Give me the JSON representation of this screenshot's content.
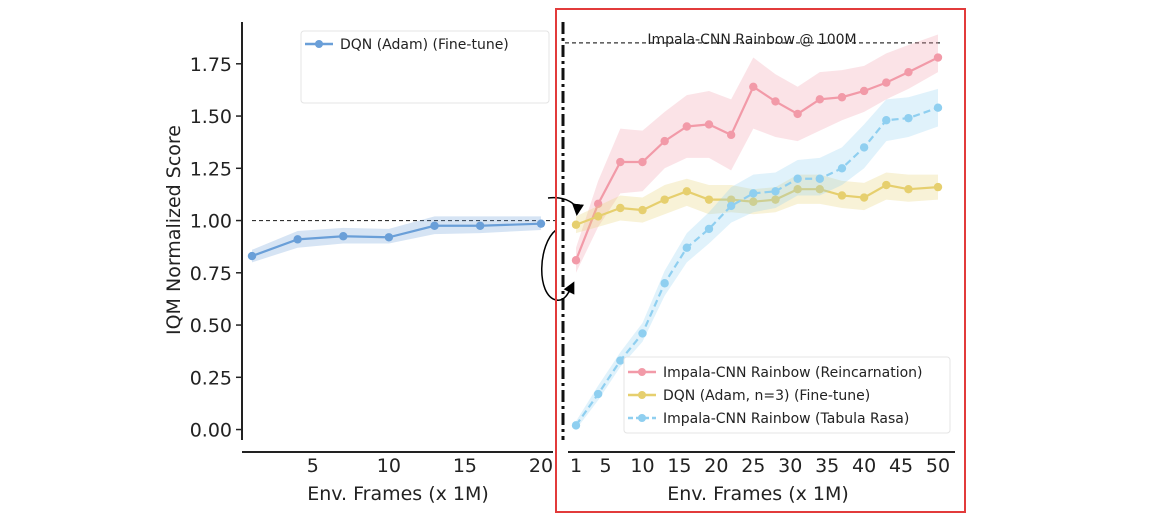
{
  "chart_data": {
    "type": "line",
    "ylabel": "IQM Normalized Score",
    "ylim": [
      -0.05,
      1.95
    ],
    "yticks": [
      "0.00",
      "0.25",
      "0.50",
      "0.75",
      "1.00",
      "1.25",
      "1.50",
      "1.75"
    ],
    "left_panel": {
      "xlabel": "Env. Frames (x 1M)",
      "xticks": [
        "5",
        "10",
        "15",
        "20"
      ],
      "xlim": [
        1,
        20
      ],
      "reference_line_y": 1.0,
      "legend": [
        "DQN (Adam) (Fine-tune)"
      ],
      "series": [
        {
          "name": "DQN (Adam) (Fine-tune)",
          "color": "#6a9fd8",
          "x": [
            1,
            4,
            7,
            10,
            13,
            16,
            20
          ],
          "y": [
            0.83,
            0.91,
            0.925,
            0.92,
            0.975,
            0.975,
            0.985
          ],
          "lo": [
            0.8,
            0.87,
            0.89,
            0.89,
            0.935,
            0.94,
            0.955
          ],
          "hi": [
            0.86,
            0.95,
            0.965,
            0.96,
            1.02,
            1.02,
            1.02
          ]
        }
      ]
    },
    "right_panel": {
      "xlabel": "Env. Frames (x 1M)",
      "xticks": [
        "1",
        "5",
        "10",
        "15",
        "20",
        "25",
        "30",
        "35",
        "40",
        "45",
        "50"
      ],
      "xlim": [
        1,
        50
      ],
      "reference_line_y": 1.85,
      "annotation": "Impala-CNN Rainbow @ 100M",
      "legend": [
        "Impala-CNN Rainbow (Reincarnation)",
        "DQN (Adam, n=3) (Fine-tune)",
        "Impala-CNN Rainbow (Tabula Rasa)"
      ],
      "series": [
        {
          "name": "Impala-CNN Rainbow (Reincarnation)",
          "color": "#f29aa8",
          "style": "solid",
          "x": [
            1,
            4,
            7,
            10,
            13,
            16,
            19,
            22,
            25,
            28,
            31,
            34,
            37,
            40,
            43,
            46,
            50
          ],
          "y": [
            0.81,
            1.08,
            1.28,
            1.28,
            1.38,
            1.45,
            1.46,
            1.41,
            1.64,
            1.57,
            1.51,
            1.58,
            1.59,
            1.62,
            1.66,
            1.71,
            1.78
          ],
          "lo": [
            0.75,
            0.97,
            1.13,
            1.14,
            1.25,
            1.3,
            1.3,
            1.24,
            1.44,
            1.4,
            1.38,
            1.43,
            1.48,
            1.52,
            1.58,
            1.63,
            1.71
          ],
          "hi": [
            0.87,
            1.19,
            1.44,
            1.43,
            1.52,
            1.6,
            1.62,
            1.58,
            1.78,
            1.7,
            1.64,
            1.71,
            1.72,
            1.74,
            1.8,
            1.84,
            1.89
          ]
        },
        {
          "name": "DQN (Adam, n=3) (Fine-tune)",
          "color": "#e6cf6e",
          "style": "solid",
          "x": [
            1,
            4,
            7,
            10,
            13,
            16,
            19,
            22,
            25,
            28,
            31,
            34,
            37,
            40,
            43,
            46,
            50
          ],
          "y": [
            0.98,
            1.02,
            1.06,
            1.05,
            1.1,
            1.14,
            1.1,
            1.1,
            1.09,
            1.1,
            1.15,
            1.15,
            1.12,
            1.11,
            1.17,
            1.15,
            1.16
          ],
          "lo": [
            0.94,
            0.97,
            1.0,
            0.99,
            1.03,
            1.07,
            1.03,
            1.04,
            1.03,
            1.04,
            1.08,
            1.08,
            1.06,
            1.05,
            1.1,
            1.09,
            1.1
          ],
          "hi": [
            1.02,
            1.07,
            1.12,
            1.11,
            1.17,
            1.2,
            1.17,
            1.17,
            1.15,
            1.16,
            1.22,
            1.22,
            1.19,
            1.18,
            1.23,
            1.22,
            1.22
          ]
        },
        {
          "name": "Impala-CNN Rainbow (Tabula Rasa)",
          "color": "#8fcff0",
          "style": "dashed",
          "x": [
            1,
            4,
            7,
            10,
            13,
            16,
            19,
            22,
            25,
            28,
            31,
            34,
            37,
            40,
            43,
            46,
            50
          ],
          "y": [
            0.02,
            0.17,
            0.33,
            0.46,
            0.7,
            0.87,
            0.96,
            1.07,
            1.13,
            1.14,
            1.2,
            1.2,
            1.25,
            1.35,
            1.48,
            1.49,
            1.54
          ],
          "lo": [
            0.0,
            0.14,
            0.3,
            0.42,
            0.64,
            0.8,
            0.89,
            0.99,
            1.04,
            1.06,
            1.12,
            1.12,
            1.17,
            1.25,
            1.38,
            1.4,
            1.45
          ],
          "hi": [
            0.04,
            0.21,
            0.37,
            0.51,
            0.76,
            0.94,
            1.04,
            1.16,
            1.22,
            1.23,
            1.29,
            1.3,
            1.35,
            1.46,
            1.58,
            1.59,
            1.63
          ]
        }
      ]
    }
  }
}
